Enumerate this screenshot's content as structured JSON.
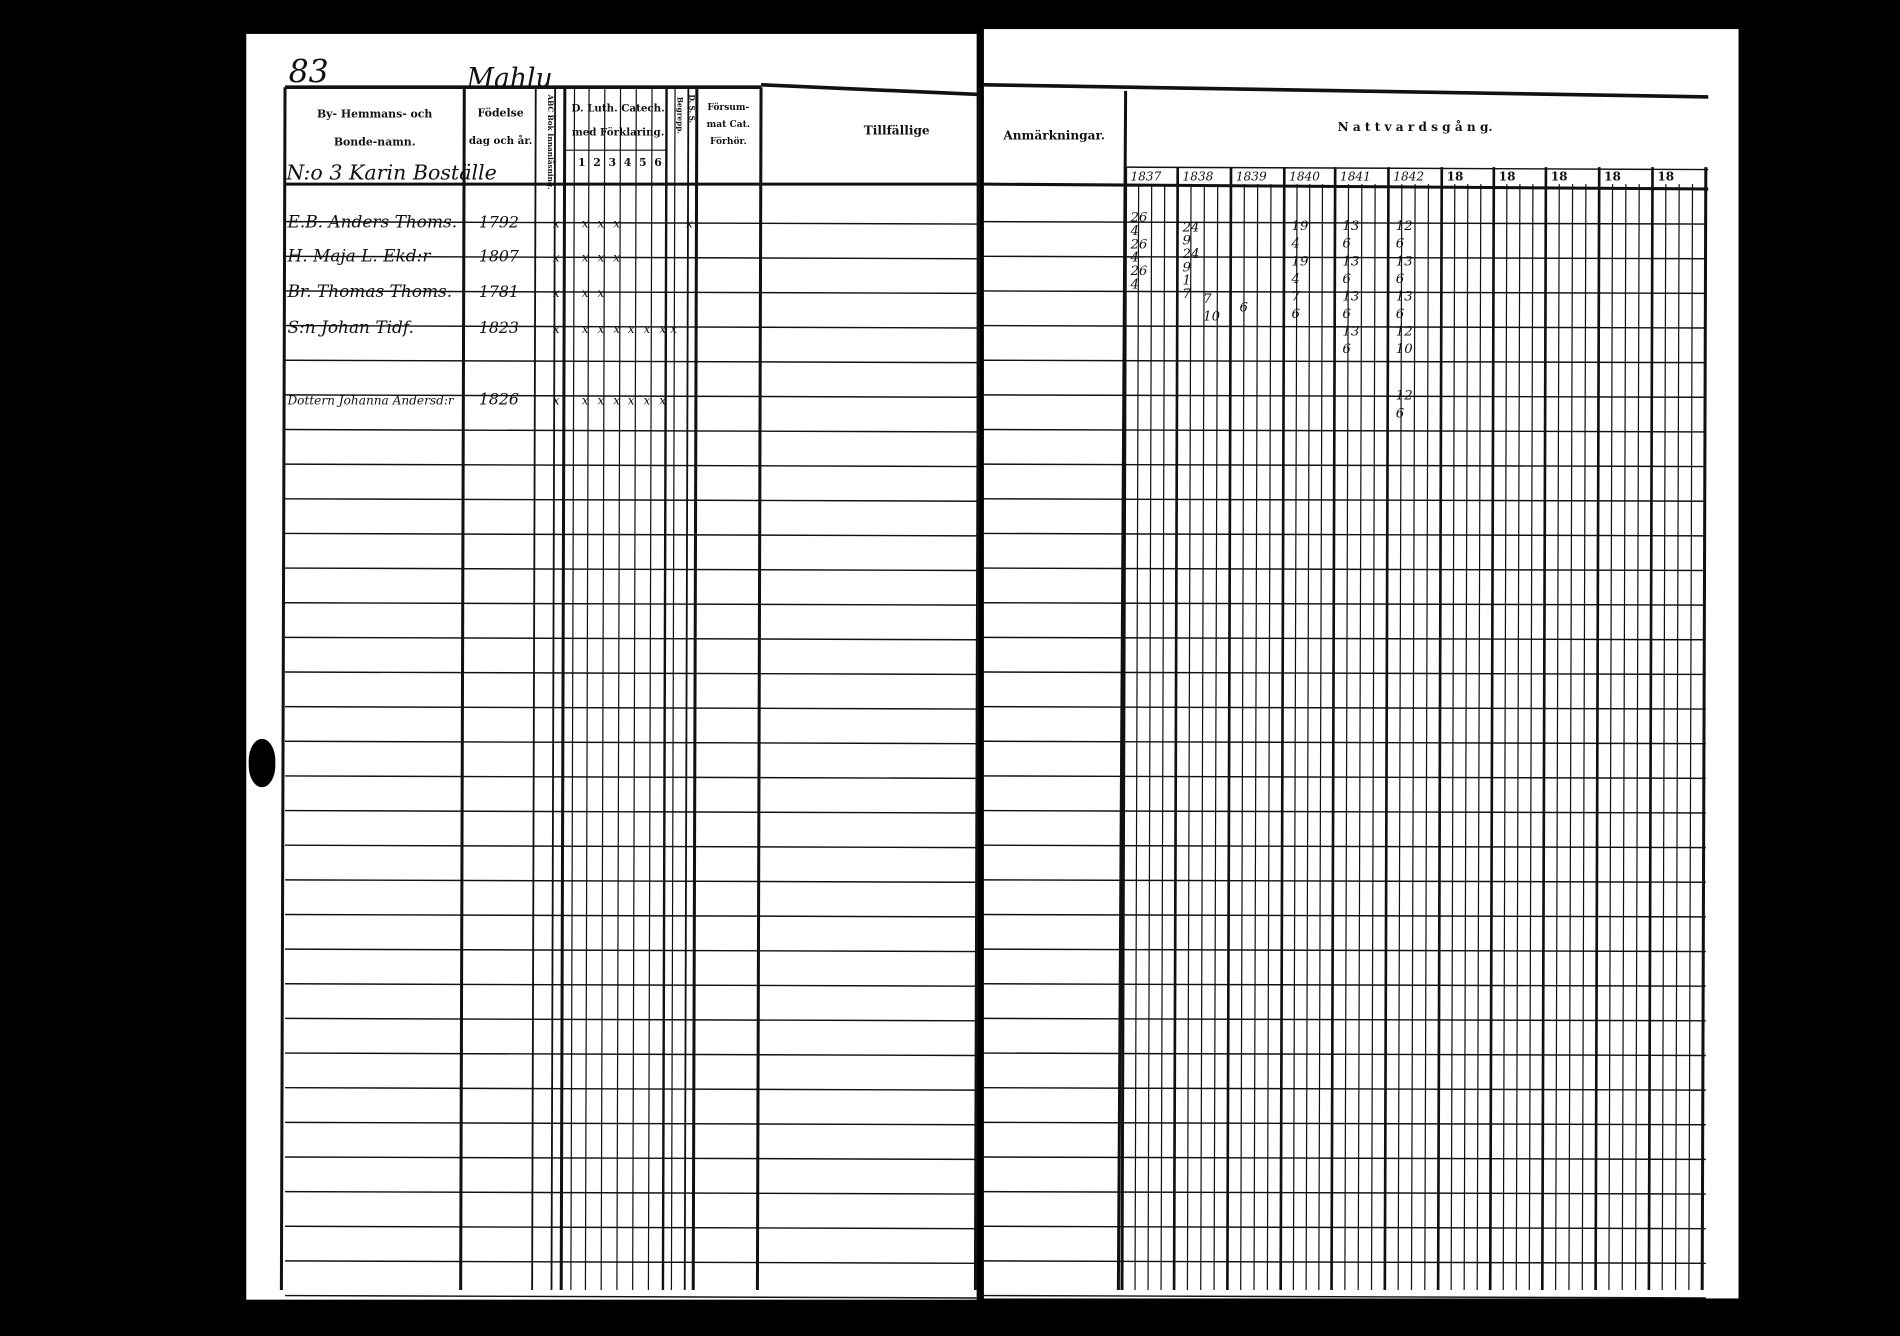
{
  "left_page": {
    "page_number": "83",
    "place": "Mahlu",
    "headers": {
      "name_line1": "By- Hemmans- och",
      "name_line2": "Bonde-namn.",
      "birth_line1": "Födelse",
      "birth_line2": "dag och år.",
      "abc": "ABC Bok Innanläsning.",
      "catech_line1": "D. Luth. Catech.",
      "catech_line2": "med Förklaring.",
      "catech_subcols": [
        "1",
        "2",
        "3",
        "4",
        "5",
        "6"
      ],
      "begrepp": "Begrepp.",
      "dss": "D. S. S.",
      "forsummat_line1": "Försum-",
      "forsummat_line2": "mat Cat.",
      "forsummat_line3": "Förhör.",
      "tillfallige": "Tillfällige"
    },
    "household_heading": "N:o 3 Karin Boställe",
    "rows": [
      {
        "name": "E.B. Anders Thoms.",
        "born": "1792",
        "marks": [
          "x",
          "",
          "x",
          "x",
          "x",
          "",
          "",
          "",
          "",
          "x"
        ]
      },
      {
        "name": "H. Maja L. Ekd:r",
        "born": "1807",
        "marks": [
          "x",
          "",
          "x",
          "x",
          "x",
          "",
          "",
          "",
          "",
          ""
        ]
      },
      {
        "name": "Br. Thomas Thoms.",
        "born": "1781",
        "marks": [
          "x",
          "",
          "x",
          "x",
          "",
          "",
          "",
          "",
          "",
          ""
        ]
      },
      {
        "name": "S:n Johan Tidf.",
        "born": "1823",
        "marks": [
          "x",
          "",
          "x",
          "x",
          "x",
          "x",
          "x",
          "x",
          "x",
          ""
        ]
      },
      {
        "name": "Dottern Johanna Andersd:r",
        "born": "1826",
        "marks": [
          "x",
          "",
          "x",
          "x",
          "x",
          "x",
          "x",
          "x",
          "",
          ""
        ]
      }
    ]
  },
  "right_page": {
    "headers": {
      "anmarkningar": "Anmärkningar.",
      "nattvardsgang": "N a t t v a r d s g å n g."
    },
    "years": [
      "1837",
      "1838",
      "1839",
      "1840",
      "1841",
      "1842",
      "18",
      "18",
      "18",
      "18",
      "18"
    ],
    "entries": [
      {
        "year": "1837",
        "values": [
          "26",
          "4",
          "26",
          "4",
          "26",
          "4"
        ]
      },
      {
        "year": "1838",
        "values": [
          "24",
          "9",
          "24",
          "9",
          "1",
          "7"
        ]
      },
      {
        "year": "1838b",
        "values": [
          "7",
          "10"
        ]
      },
      {
        "year": "1839",
        "values": [
          "6"
        ]
      },
      {
        "year": "1840",
        "values": [
          "19",
          "4",
          "19",
          "4",
          "7",
          "6"
        ]
      },
      {
        "year": "1841",
        "values": [
          "13",
          "6",
          "13",
          "6",
          "13",
          "6",
          "13",
          "6"
        ]
      },
      {
        "year": "1842",
        "values": [
          "12",
          "6",
          "13",
          "6",
          "13",
          "6",
          "12",
          "10"
        ]
      },
      {
        "year": "1842b",
        "values": [
          "12",
          "6"
        ]
      }
    ]
  }
}
